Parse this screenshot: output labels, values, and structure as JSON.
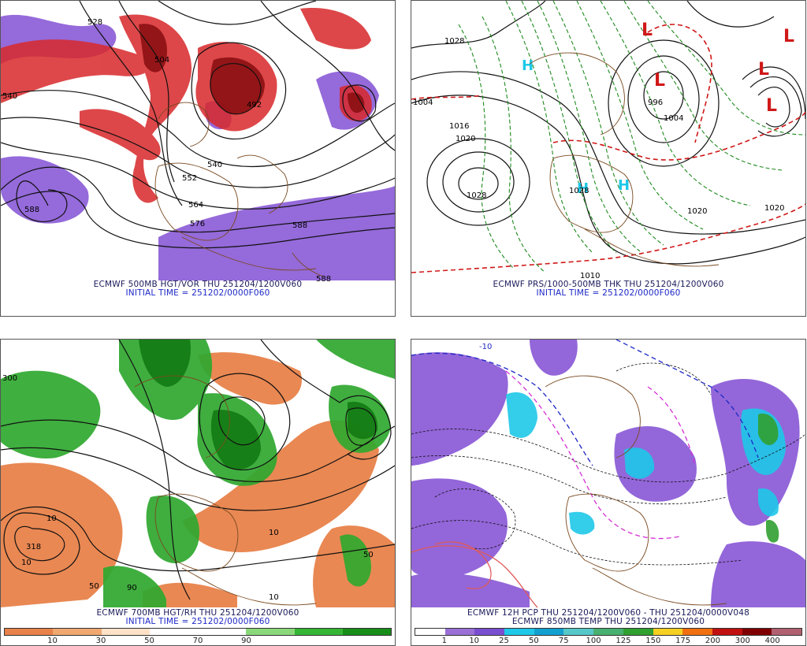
{
  "panels": {
    "p1": {
      "caption1": "ECMWF 500MB HGT/VOR THU 251204/1200V060",
      "caption2": "INITIAL TIME = 251202/0000F060",
      "contour_labels": [
        "540",
        "528",
        "504",
        "492",
        "540",
        "552",
        "564",
        "576",
        "588",
        "588",
        "588"
      ]
    },
    "p2": {
      "caption1": "ECMWF PRS/1000-500MB THK THU 251204/1200V060",
      "caption2": "INITIAL TIME = 251202/0000F060",
      "contour_labels": [
        "1028",
        "1004",
        "1016",
        "1020",
        "1028",
        "996",
        "1004",
        "1020",
        "1020",
        "1028",
        "1010"
      ]
    },
    "p3": {
      "caption1": "ECMWF 700MB HGT/RH THU 251204/1200V060",
      "caption2": "INITIAL TIME = 251202/0000F060",
      "colorbar": {
        "labels": [
          "10",
          "30",
          "50",
          "70",
          "90"
        ],
        "colors": [
          "#e8824a",
          "#f0a870",
          "#fde2c8",
          "#ffffff",
          "#ffffff",
          "#8ad87a",
          "#34b534",
          "#178e17"
        ]
      },
      "contour_labels": [
        "300",
        "318",
        "10",
        "10",
        "50",
        "90",
        "10",
        "50",
        "10"
      ]
    },
    "p4": {
      "caption1": "ECMWF 12H PCP THU 251204/1200V060 - THU 251204/0000V048",
      "caption2": "ECMWF 850MB TEMP THU 251204/1200V060",
      "colorbar": {
        "labels": [
          "1",
          "10",
          "25",
          "50",
          "75",
          "100",
          "125",
          "150",
          "175",
          "200",
          "300",
          "400"
        ],
        "colors": [
          "#ffffff",
          "#9a6fd6",
          "#7a4ed0",
          "#1ec8e8",
          "#12a0d0",
          "#55c8c8",
          "#48b070",
          "#30a030",
          "#f5d020",
          "#f07010",
          "#c01010",
          "#800000",
          "#b06070"
        ]
      },
      "contour_labels": [
        "-10"
      ]
    }
  }
}
